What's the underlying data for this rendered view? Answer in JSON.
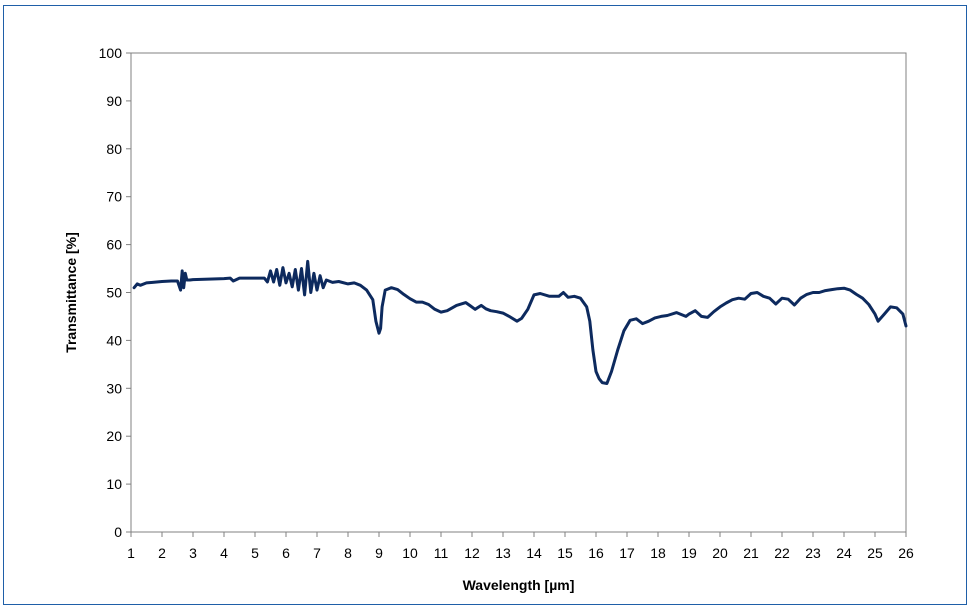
{
  "chart_data": {
    "type": "line",
    "title": "",
    "xlabel": "Wavelength [µm]",
    "ylabel": "Transmittance [%]",
    "xlim": [
      1,
      26
    ],
    "ylim": [
      0,
      100
    ],
    "x_ticks": [
      1,
      2,
      3,
      4,
      5,
      6,
      7,
      8,
      9,
      10,
      11,
      12,
      13,
      14,
      15,
      16,
      17,
      18,
      19,
      20,
      21,
      22,
      23,
      24,
      25,
      26
    ],
    "y_ticks": [
      0,
      10,
      20,
      30,
      40,
      50,
      60,
      70,
      80,
      90,
      100
    ],
    "grid": false,
    "legend": "none",
    "line_color": "#0d2a5e",
    "series": [
      {
        "x": [
          1.1,
          1.2,
          1.3,
          1.5,
          1.7,
          2.0,
          2.3,
          2.5,
          2.6,
          2.65,
          2.7,
          2.75,
          2.8,
          2.9,
          3.0,
          3.5,
          4.0,
          4.2,
          4.3,
          4.5,
          5.0,
          5.3,
          5.4,
          5.5,
          5.6,
          5.7,
          5.8,
          5.9,
          6.0,
          6.1,
          6.2,
          6.3,
          6.4,
          6.5,
          6.6,
          6.7,
          6.8,
          6.9,
          7.0,
          7.1,
          7.2,
          7.3,
          7.5,
          7.7,
          8.0,
          8.2,
          8.4,
          8.6,
          8.8,
          8.9,
          9.0,
          9.05,
          9.1,
          9.2,
          9.4,
          9.6,
          9.8,
          10.0,
          10.2,
          10.4,
          10.6,
          10.8,
          11.0,
          11.2,
          11.5,
          11.8,
          11.95,
          12.1,
          12.3,
          12.45,
          12.6,
          12.8,
          13.0,
          13.2,
          13.45,
          13.6,
          13.8,
          14.0,
          14.2,
          14.5,
          14.8,
          14.95,
          15.1,
          15.3,
          15.5,
          15.7,
          15.8,
          15.9,
          16.0,
          16.1,
          16.2,
          16.35,
          16.5,
          16.7,
          16.9,
          17.1,
          17.3,
          17.5,
          17.7,
          17.9,
          18.1,
          18.3,
          18.6,
          18.9,
          19.0,
          19.2,
          19.4,
          19.6,
          19.8,
          20.0,
          20.2,
          20.4,
          20.6,
          20.8,
          21.0,
          21.2,
          21.4,
          21.6,
          21.8,
          22.0,
          22.2,
          22.4,
          22.6,
          22.8,
          23.0,
          23.2,
          23.4,
          23.6,
          23.8,
          24.0,
          24.2,
          24.4,
          24.6,
          24.8,
          25.0,
          25.1,
          25.3,
          25.5,
          25.7,
          25.9,
          26.0
        ],
        "y": [
          51.0,
          51.8,
          51.5,
          52.0,
          52.1,
          52.3,
          52.4,
          52.4,
          50.5,
          54.5,
          51.0,
          54.0,
          52.6,
          52.6,
          52.7,
          52.8,
          52.9,
          53.0,
          52.4,
          53.0,
          53.0,
          53.0,
          52.2,
          54.5,
          52.2,
          54.8,
          51.5,
          55.2,
          52.0,
          54.0,
          51.2,
          54.8,
          50.5,
          55.0,
          49.5,
          56.5,
          50.0,
          54.0,
          50.5,
          53.5,
          51.0,
          52.6,
          52.1,
          52.3,
          51.8,
          52.0,
          51.5,
          50.5,
          48.5,
          44.0,
          41.5,
          42.5,
          47.0,
          50.5,
          51.0,
          50.6,
          49.6,
          48.7,
          48.0,
          48.0,
          47.5,
          46.5,
          45.9,
          46.2,
          47.3,
          47.9,
          47.2,
          46.5,
          47.3,
          46.6,
          46.2,
          46.0,
          45.7,
          45.0,
          44.0,
          44.6,
          46.5,
          49.5,
          49.8,
          49.2,
          49.2,
          50.0,
          49.0,
          49.2,
          48.8,
          47.0,
          44.0,
          38.0,
          33.5,
          32.0,
          31.2,
          31.0,
          33.5,
          38.0,
          42.0,
          44.2,
          44.5,
          43.5,
          44.0,
          44.7,
          45.0,
          45.2,
          45.8,
          45.0,
          45.5,
          46.2,
          45.0,
          44.8,
          46.0,
          47.0,
          47.8,
          48.5,
          48.8,
          48.6,
          49.8,
          50.0,
          49.2,
          48.8,
          47.6,
          48.8,
          48.6,
          47.4,
          48.8,
          49.6,
          50.0,
          50.0,
          50.4,
          50.6,
          50.8,
          50.9,
          50.5,
          49.6,
          48.8,
          47.5,
          45.5,
          44.0,
          45.5,
          47.0,
          46.8,
          45.5,
          43.0
        ]
      }
    ]
  }
}
